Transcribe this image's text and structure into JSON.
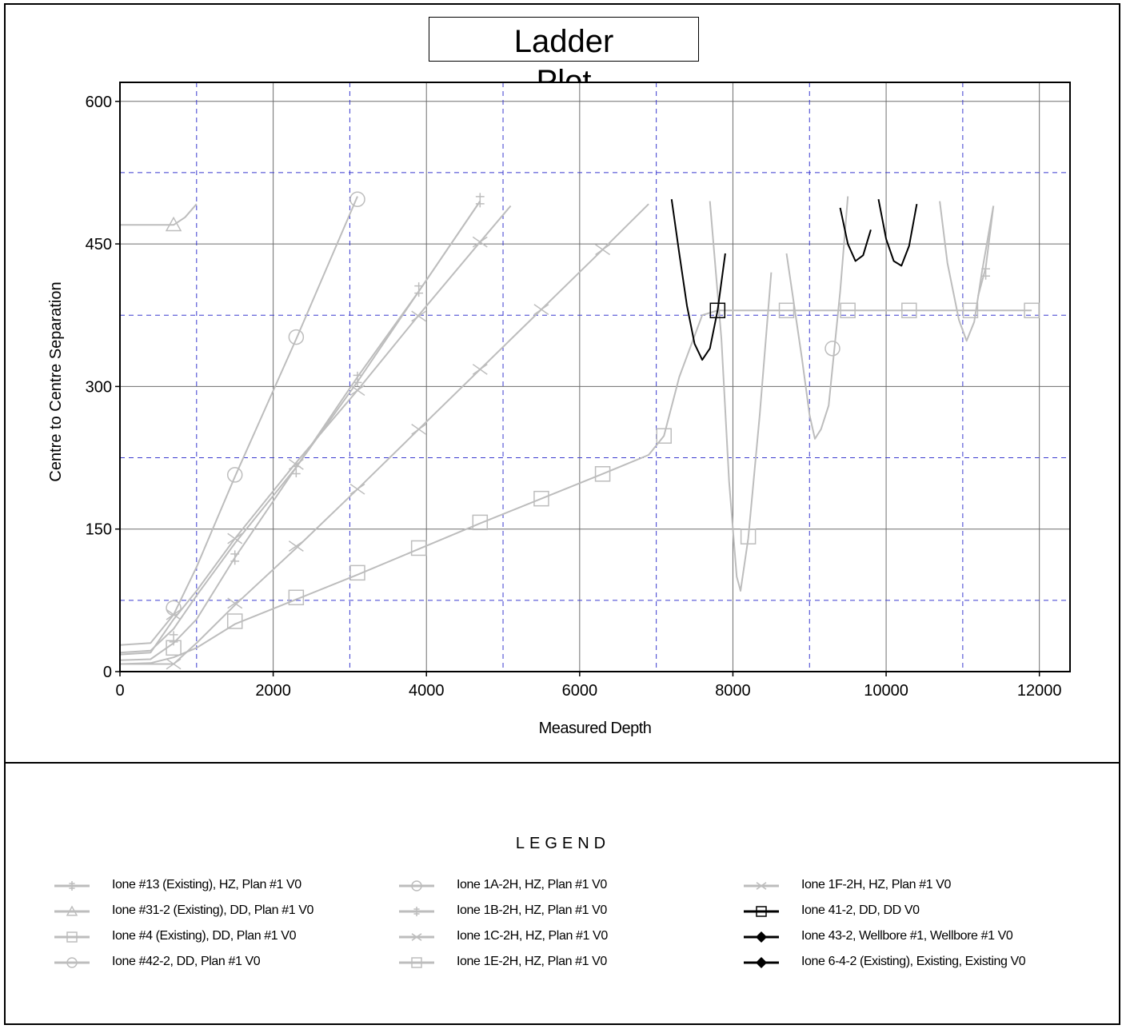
{
  "title_lines": [
    "Ladder",
    "Plot"
  ],
  "legend_title": "LEGEND",
  "colors": {
    "grey": "#bdbdbd",
    "black": "#000000",
    "grid_dash": "#3a3acf",
    "grid_solid": "#6e6e6e"
  },
  "chart_data": {
    "type": "line",
    "xlabel": "Measured Depth",
    "ylabel": "Centre to Centre Separation",
    "xlim": [
      0,
      12400
    ],
    "ylim": [
      0,
      620
    ],
    "x_ticks": [
      "0",
      "2000",
      "4000",
      "6000",
      "8000",
      "10000",
      "12000"
    ],
    "y_ticks": [
      "0",
      "150",
      "300",
      "450",
      "600"
    ],
    "x_tick_values": [
      0,
      2000,
      4000,
      6000,
      8000,
      10000,
      12000
    ],
    "y_tick_values": [
      0,
      150,
      300,
      450,
      600
    ],
    "dashed_x": [
      1000,
      3000,
      5000,
      7000,
      9000,
      11000
    ],
    "dashed_y": [
      75,
      225,
      375,
      525
    ],
    "series": [
      {
        "name": "Ione #13 (Existing), HZ, Plan #1 V0",
        "color": "#bdbdbd",
        "marker": "plus",
        "segments": [
          [
            [
              0,
              12
            ],
            [
              400,
              13
            ],
            [
              700,
              30
            ],
            [
              1000,
              55
            ],
            [
              1500,
              120
            ],
            [
              2300,
              215
            ],
            [
              3100,
              305
            ],
            [
              3900,
              400
            ],
            [
              4700,
              495
            ]
          ],
          [
            [
              11200,
              395
            ],
            [
              11300,
              425
            ],
            [
              11400,
              490
            ]
          ]
        ]
      },
      {
        "name": "Ione #31-2 (Existing), DD, Plan #1 V0",
        "color": "#bdbdbd",
        "marker": "triangle",
        "segments": [
          [
            [
              0,
              470
            ],
            [
              600,
              470
            ],
            [
              700,
              470
            ],
            [
              850,
              478
            ],
            [
              1000,
              492
            ]
          ]
        ]
      },
      {
        "name": "Ione #4 (Existing), DD, Plan #1 V0",
        "color": "#bdbdbd",
        "marker": "square",
        "segments": [
          [
            [
              0,
              8
            ],
            [
              400,
              9
            ],
            [
              700,
              15
            ],
            [
              1000,
              25
            ],
            [
              1500,
              50
            ],
            [
              2300,
              76
            ],
            [
              3100,
              102
            ],
            [
              3900,
              129
            ],
            [
              4700,
              156
            ],
            [
              5500,
              182
            ],
            [
              6300,
              208
            ],
            [
              6900,
              228
            ],
            [
              7100,
              248
            ],
            [
              7300,
              310
            ],
            [
              7600,
              375
            ],
            [
              7800,
              380
            ],
            [
              8700,
              380
            ],
            [
              9500,
              380
            ],
            [
              10300,
              380
            ],
            [
              11100,
              380
            ],
            [
              11900,
              380
            ]
          ]
        ]
      },
      {
        "name": "Ione #42-2, DD, Plan #1 V0",
        "color": "#bdbdbd",
        "marker": "circle",
        "segments": [
          [
            [
              8700,
              440
            ],
            [
              8900,
              330
            ],
            [
              9000,
              270
            ],
            [
              9070,
              245
            ],
            [
              9150,
              255
            ],
            [
              9250,
              280
            ],
            [
              9300,
              320
            ],
            [
              9400,
              400
            ],
            [
              9500,
              500
            ]
          ]
        ]
      },
      {
        "name": "Ione 1A-2H, HZ, Plan #1 V0",
        "color": "#bdbdbd",
        "marker": "circle",
        "segments": [
          [
            [
              0,
              28
            ],
            [
              400,
              30
            ],
            [
              700,
              60
            ],
            [
              1000,
              110
            ],
            [
              1500,
              205
            ],
            [
              2300,
              350
            ],
            [
              3100,
              500
            ]
          ]
        ]
      },
      {
        "name": "Ione 1B-2H, HZ, Plan #1 V0",
        "color": "#bdbdbd",
        "marker": "plus",
        "segments": [
          [
            [
              0,
              20
            ],
            [
              400,
              22
            ],
            [
              700,
              45
            ],
            [
              1000,
              80
            ],
            [
              1500,
              135
            ],
            [
              2300,
              215
            ],
            [
              3100,
              310
            ],
            [
              3900,
              400
            ],
            [
              4700,
              495
            ]
          ]
        ]
      },
      {
        "name": "Ione 1C-2H, HZ, Plan #1 V0",
        "color": "#bdbdbd",
        "marker": "x",
        "segments": [
          [
            [
              0,
              18
            ],
            [
              400,
              20
            ],
            [
              700,
              55
            ],
            [
              1000,
              85
            ],
            [
              1500,
              140
            ],
            [
              2300,
              220
            ],
            [
              3100,
              296
            ],
            [
              3900,
              375
            ],
            [
              4700,
              452
            ],
            [
              5100,
              490
            ]
          ]
        ]
      },
      {
        "name": "Ione 1E-2H, HZ, Plan #1 V0",
        "color": "#bdbdbd",
        "marker": "square",
        "segments": [
          [
            [
              7700,
              495
            ],
            [
              7850,
              350
            ],
            [
              7950,
              200
            ],
            [
              8050,
              100
            ],
            [
              8100,
              85
            ],
            [
              8200,
              140
            ],
            [
              8350,
              270
            ],
            [
              8500,
              420
            ]
          ],
          [
            [
              10700,
              495
            ],
            [
              10800,
              430
            ],
            [
              10950,
              370
            ],
            [
              11050,
              348
            ],
            [
              11150,
              368
            ],
            [
              11250,
              420
            ],
            [
              11400,
              490
            ]
          ]
        ]
      },
      {
        "name": "Ione 1F-2H, HZ, Plan #1 V0",
        "color": "#bdbdbd",
        "marker": "x",
        "segments": [
          [
            [
              0,
              8
            ],
            [
              400,
              8
            ],
            [
              700,
              8
            ],
            [
              1000,
              30
            ],
            [
              1500,
              70
            ],
            [
              2300,
              130
            ],
            [
              3100,
              192
            ],
            [
              3900,
              255
            ],
            [
              4700,
              318
            ],
            [
              5500,
              381
            ],
            [
              6300,
              444
            ],
            [
              6900,
              492
            ]
          ]
        ]
      },
      {
        "name": "Ione 41-2, DD, DD V0",
        "color": "#000000",
        "marker": "square",
        "segments": [
          [
            [
              7200,
              497
            ],
            [
              7300,
              440
            ],
            [
              7400,
              385
            ],
            [
              7500,
              345
            ],
            [
              7600,
              328
            ],
            [
              7700,
              340
            ],
            [
              7800,
              380
            ],
            [
              7900,
              440
            ]
          ]
        ]
      },
      {
        "name": "Ione 43-2, Wellbore #1, Wellbore #1 V0",
        "color": "#000000",
        "marker": "diamond",
        "segments": [
          [
            [
              9400,
              488
            ],
            [
              9500,
              450
            ],
            [
              9600,
              432
            ],
            [
              9700,
              438
            ],
            [
              9800,
              465
            ]
          ]
        ]
      },
      {
        "name": "Ione 6-4-2 (Existing), Existing, Existing V0",
        "color": "#000000",
        "marker": "diamond",
        "segments": [
          [
            [
              9900,
              497
            ],
            [
              10000,
              455
            ],
            [
              10100,
              432
            ],
            [
              10200,
              427
            ],
            [
              10300,
              448
            ],
            [
              10400,
              492
            ]
          ]
        ]
      }
    ],
    "markers": [
      {
        "series": 0,
        "points": [
          [
            700,
            35
          ],
          [
            1500,
            120
          ],
          [
            2300,
            212
          ],
          [
            3100,
            308
          ],
          [
            3900,
            402
          ],
          [
            4700,
            496
          ],
          [
            11300,
            420
          ]
        ]
      },
      {
        "series": 1,
        "points": [
          [
            700,
            470
          ]
        ]
      },
      {
        "series": 2,
        "points": [
          [
            700,
            25
          ],
          [
            1500,
            53
          ],
          [
            2300,
            78
          ],
          [
            3100,
            104
          ],
          [
            3900,
            130
          ],
          [
            4700,
            157
          ],
          [
            5500,
            182
          ],
          [
            6300,
            208
          ],
          [
            7100,
            248
          ],
          [
            7800,
            380
          ],
          [
            8700,
            380
          ],
          [
            9500,
            380
          ],
          [
            10300,
            380
          ],
          [
            11100,
            380
          ],
          [
            11900,
            380
          ]
        ]
      },
      {
        "series": 3,
        "points": [
          [
            9300,
            340
          ]
        ]
      },
      {
        "series": 4,
        "points": [
          [
            700,
            67
          ],
          [
            1500,
            207
          ],
          [
            2300,
            352
          ],
          [
            3100,
            497
          ]
        ]
      },
      {
        "series": 7,
        "points": [
          [
            8200,
            142
          ]
        ]
      },
      {
        "series": 8,
        "points": [
          [
            700,
            8
          ],
          [
            700,
            60
          ],
          [
            1500,
            72
          ],
          [
            1500,
            140
          ],
          [
            2300,
            132
          ],
          [
            2300,
            218
          ],
          [
            3100,
            192
          ],
          [
            3100,
            296
          ],
          [
            3900,
            255
          ],
          [
            3900,
            374
          ],
          [
            4700,
            318
          ],
          [
            4700,
            452
          ],
          [
            5500,
            381
          ],
          [
            6300,
            444
          ]
        ]
      },
      {
        "series": 9,
        "points": [
          [
            7800,
            380
          ]
        ]
      }
    ]
  }
}
